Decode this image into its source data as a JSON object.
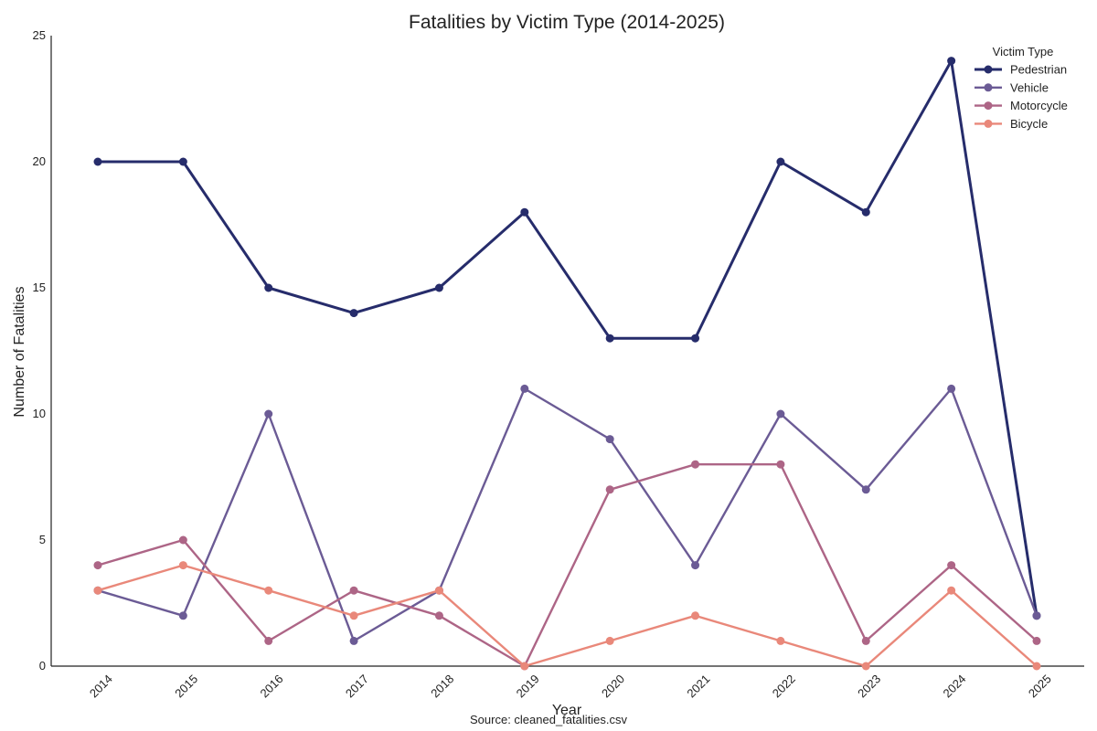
{
  "chart_data": {
    "type": "line",
    "title": "Fatalities by Victim Type (2014-2025)",
    "xlabel": "Year",
    "ylabel": "Number of Fatalities",
    "x": [
      "2014",
      "2015",
      "2016",
      "2017",
      "2018",
      "2019",
      "2020",
      "2021",
      "2022",
      "2023",
      "2024",
      "2025"
    ],
    "ylim": [
      0,
      25
    ],
    "yticks": [
      0,
      5,
      10,
      15,
      20,
      25
    ],
    "grid": false,
    "legend": {
      "title": "Victim Type",
      "placement": "top-right"
    },
    "series": [
      {
        "name": "Pedestrian",
        "color": "#262c6b",
        "values": [
          20,
          20,
          15,
          14,
          15,
          18,
          13,
          13,
          20,
          18,
          24,
          2
        ]
      },
      {
        "name": "Vehicle",
        "color": "#6b5b95",
        "values": [
          3,
          2,
          10,
          1,
          3,
          11,
          9,
          4,
          10,
          7,
          11,
          2
        ]
      },
      {
        "name": "Motorcycle",
        "color": "#ad6586",
        "values": [
          4,
          5,
          1,
          3,
          2,
          0,
          7,
          8,
          8,
          1,
          4,
          1
        ]
      },
      {
        "name": "Bicycle",
        "color": "#e9887a",
        "values": [
          3,
          4,
          3,
          2,
          3,
          0,
          1,
          2,
          1,
          0,
          3,
          0
        ]
      }
    ],
    "source": "Source: cleaned_fatalities.csv"
  }
}
